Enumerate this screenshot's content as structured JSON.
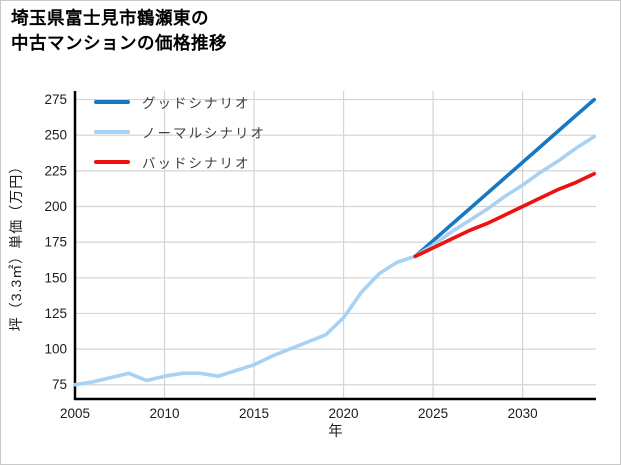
{
  "figure": {
    "title_line1": "埼玉県富士見市鶴瀬東の",
    "title_line2": "中古マンションの価格推移"
  },
  "chart_data": {
    "type": "line",
    "title": "埼玉県富士見市鶴瀬東の中古マンションの価格推移",
    "xlabel": "年",
    "ylabel": "坪（3.3㎡）単価（万円）",
    "xlim": [
      2005,
      2034.1
    ],
    "ylim": [
      65,
      281
    ],
    "xticks": [
      2005,
      2010,
      2015,
      2020,
      2025,
      2030
    ],
    "yticks": [
      75,
      100,
      125,
      150,
      175,
      200,
      225,
      250,
      275
    ],
    "grid": true,
    "legend_position": "top-left",
    "colors": {
      "grid": "#d4d4d4",
      "spine": "#000000",
      "tick_label": "#1c1c1c",
      "axis_label": "#1c1c1c"
    },
    "historical": {
      "color": "#a9d1f2",
      "x": [
        2005,
        2006,
        2007,
        2008,
        2009,
        2010,
        2011,
        2012,
        2013,
        2014,
        2015,
        2016,
        2017,
        2018,
        2019,
        2020,
        2021,
        2022,
        2023,
        2024
      ],
      "values": [
        75,
        77,
        80,
        83,
        78,
        81,
        83,
        83,
        81,
        85,
        89,
        95,
        100,
        105,
        110,
        122,
        140,
        153,
        161,
        165
      ]
    },
    "scenarios": [
      {
        "name": "グッドシナリオ",
        "color": "#1778c2",
        "x": [
          2024,
          2025,
          2026,
          2027,
          2028,
          2029,
          2030,
          2031,
          2032,
          2033,
          2034
        ],
        "values": [
          165,
          176,
          187,
          198,
          209,
          220,
          231,
          242,
          253,
          264,
          275
        ]
      },
      {
        "name": "ノーマルシナリオ",
        "color": "#a9d1f2",
        "x": [
          2024,
          2025,
          2026,
          2027,
          2028,
          2029,
          2030,
          2031,
          2032,
          2033,
          2034
        ],
        "values": [
          165,
          173,
          182,
          190,
          198,
          207,
          215,
          224,
          232,
          241,
          249
        ]
      },
      {
        "name": "バッドシナリオ",
        "color": "#ee1111",
        "x": [
          2024,
          2025,
          2026,
          2027,
          2028,
          2029,
          2030,
          2031,
          2032,
          2033,
          2034
        ],
        "values": [
          165,
          171,
          177,
          183,
          188,
          194,
          200,
          206,
          212,
          217,
          223
        ]
      }
    ]
  }
}
